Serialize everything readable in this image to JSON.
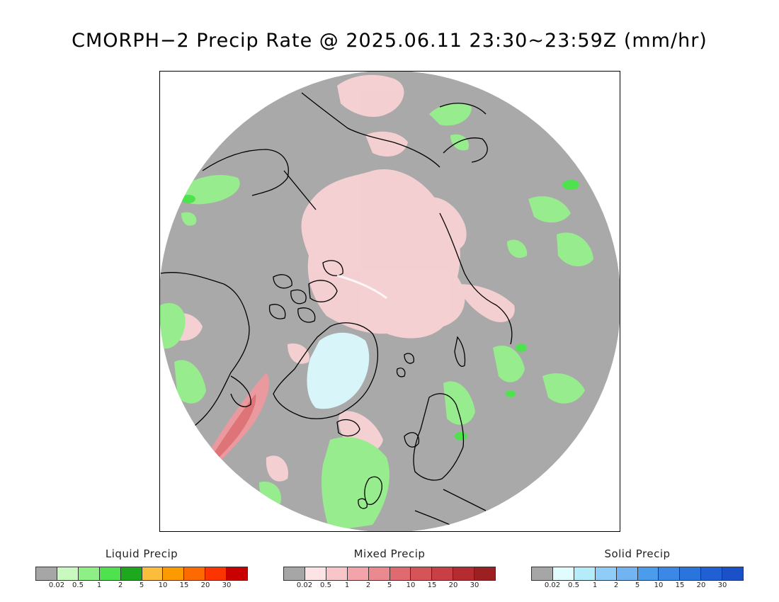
{
  "title": "CMORPH−2 Precip Rate @ 2025.06.11 23:30~23:59Z (mm/hr)",
  "map": {
    "projection": "north-polar-stereographic",
    "background_color": "#a9a9a9",
    "coastline_color": "#000000"
  },
  "legends": [
    {
      "title": "Liquid Precip",
      "colors": [
        "#a6a6a6",
        "#c8fac0",
        "#8fef87",
        "#4ee24e",
        "#1ea81e",
        "#fcbc3c",
        "#fc9a00",
        "#fc6a00",
        "#fc3400",
        "#c80000"
      ],
      "ticks": [
        "0.02",
        "0.5",
        "1",
        "2",
        "5",
        "10",
        "15",
        "20",
        "30"
      ]
    },
    {
      "title": "Mixed Precip",
      "colors": [
        "#a6a6a6",
        "#fde3e5",
        "#f8c5c9",
        "#f2a4aa",
        "#ea8a8f",
        "#df6a6f",
        "#d45458",
        "#c84045",
        "#b42c30",
        "#9c1f22"
      ],
      "ticks": [
        "0.02",
        "0.5",
        "1",
        "2",
        "5",
        "10",
        "15",
        "20",
        "30"
      ]
    },
    {
      "title": "Solid Precip",
      "colors": [
        "#a6a6a6",
        "#e0fcfc",
        "#b4ecfa",
        "#90ccf8",
        "#72b4f2",
        "#4c9cee",
        "#3c88e6",
        "#2a74de",
        "#2060d4",
        "#1a50c8"
      ],
      "ticks": [
        "0.02",
        "0.5",
        "1",
        "2",
        "5",
        "10",
        "15",
        "20",
        "30"
      ]
    }
  ]
}
